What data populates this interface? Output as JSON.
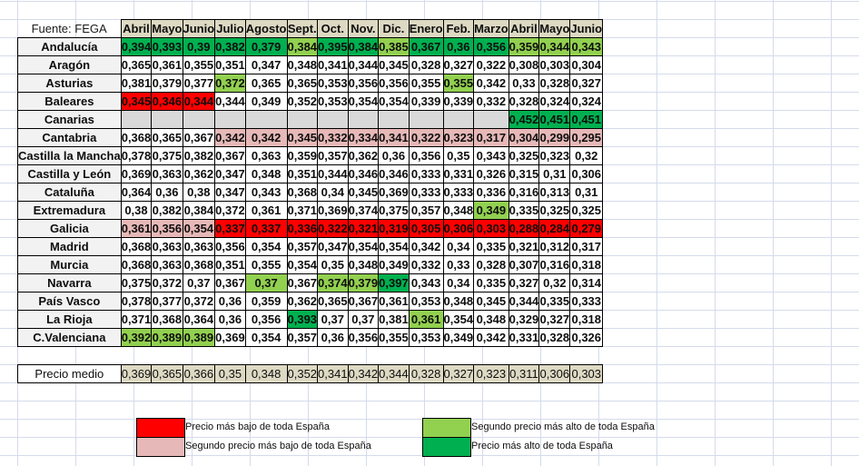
{
  "table": {
    "source_label": "Fuente: FEGA",
    "months": [
      "Abril",
      "Mayo",
      "Junio",
      "Julio",
      "Agosto",
      "Sept.",
      "Oct.",
      "Nov.",
      "Dic.",
      "Enero",
      "Feb.",
      "Marzo",
      "Abril",
      "Mayo",
      "Junio"
    ],
    "rows": [
      {
        "region": "Andalucía",
        "values": [
          "0,394",
          "0,393",
          "0,39",
          "0,382",
          "0,379",
          "0,384",
          "0,395",
          "0,384",
          "0,385",
          "0,367",
          "0,36",
          "0,356",
          "0,359",
          "0,344",
          "0,343"
        ],
        "colors": [
          "dgreen",
          "dgreen",
          "dgreen",
          "dgreen",
          "dgreen",
          "lgreen",
          "dgreen",
          "dgreen",
          "lgreen",
          "dgreen",
          "dgreen",
          "dgreen",
          "lgreen",
          "lgreen",
          "lgreen"
        ]
      },
      {
        "region": "Aragón",
        "values": [
          "0,365",
          "0,361",
          "0,355",
          "0,351",
          "0,347",
          "0,348",
          "0,341",
          "0,344",
          "0,345",
          "0,328",
          "0,327",
          "0,322",
          "0,308",
          "0,303",
          "0,304"
        ],
        "colors": [
          "none",
          "none",
          "none",
          "none",
          "none",
          "none",
          "none",
          "none",
          "none",
          "none",
          "none",
          "none",
          "none",
          "none",
          "none"
        ]
      },
      {
        "region": "Asturias",
        "values": [
          "0,381",
          "0,379",
          "0,377",
          "0,372",
          "0,365",
          "0,365",
          "0,353",
          "0,356",
          "0,356",
          "0,355",
          "0,355",
          "0,342",
          "0,33",
          "0,328",
          "0,327"
        ],
        "colors": [
          "none",
          "none",
          "none",
          "lgreen",
          "none",
          "none",
          "none",
          "none",
          "none",
          "none",
          "lgreen",
          "none",
          "none",
          "none",
          "none"
        ]
      },
      {
        "region": "Baleares",
        "values": [
          "0,345",
          "0,346",
          "0,344",
          "0,344",
          "0,349",
          "0,352",
          "0,353",
          "0,354",
          "0,354",
          "0,339",
          "0,339",
          "0,332",
          "0,328",
          "0,324",
          "0,324"
        ],
        "colors": [
          "red",
          "red",
          "red",
          "none",
          "none",
          "none",
          "none",
          "none",
          "none",
          "none",
          "none",
          "none",
          "none",
          "none",
          "none"
        ]
      },
      {
        "region": "Canarias",
        "values": [
          "",
          "",
          "",
          "",
          "",
          "",
          "",
          "",
          "",
          "",
          "",
          "",
          "0,452",
          "0,451",
          "0,451"
        ],
        "colors": [
          "gray",
          "gray",
          "gray",
          "gray",
          "gray",
          "gray",
          "gray",
          "gray",
          "gray",
          "gray",
          "gray",
          "gray",
          "dgreen",
          "dgreen",
          "dgreen"
        ]
      },
      {
        "region": "Cantabria",
        "values": [
          "0,368",
          "0,365",
          "0,367",
          "0,342",
          "0,342",
          "0,345",
          "0,332",
          "0,334",
          "0,341",
          "0,322",
          "0,323",
          "0,317",
          "0,304",
          "0,299",
          "0,295"
        ],
        "colors": [
          "none",
          "none",
          "none",
          "pink",
          "pink",
          "pink",
          "pink",
          "pink",
          "pink",
          "pink",
          "pink",
          "pink",
          "pink",
          "pink",
          "pink"
        ]
      },
      {
        "region": "Castilla la Mancha",
        "values": [
          "0,378",
          "0,375",
          "0,382",
          "0,367",
          "0,363",
          "0,359",
          "0,357",
          "0,362",
          "0,36",
          "0,356",
          "0,35",
          "0,343",
          "0,325",
          "0,323",
          "0,32"
        ],
        "colors": [
          "none",
          "none",
          "none",
          "none",
          "none",
          "none",
          "none",
          "none",
          "none",
          "none",
          "none",
          "none",
          "none",
          "none",
          "none"
        ]
      },
      {
        "region": "Castilla y León",
        "values": [
          "0,369",
          "0,363",
          "0,362",
          "0,347",
          "0,348",
          "0,351",
          "0,344",
          "0,346",
          "0,346",
          "0,333",
          "0,331",
          "0,326",
          "0,315",
          "0,31",
          "0,306"
        ],
        "colors": [
          "none",
          "none",
          "none",
          "none",
          "none",
          "none",
          "none",
          "none",
          "none",
          "none",
          "none",
          "none",
          "none",
          "none",
          "none"
        ]
      },
      {
        "region": "Cataluña",
        "values": [
          "0,364",
          "0,36",
          "0,38",
          "0,347",
          "0,343",
          "0,368",
          "0,34",
          "0,345",
          "0,369",
          "0,333",
          "0,333",
          "0,336",
          "0,316",
          "0,313",
          "0,31"
        ],
        "colors": [
          "none",
          "none",
          "none",
          "none",
          "none",
          "none",
          "none",
          "none",
          "none",
          "none",
          "none",
          "none",
          "none",
          "none",
          "none"
        ]
      },
      {
        "region": "Extremadura",
        "values": [
          "0,38",
          "0,382",
          "0,384",
          "0,372",
          "0,361",
          "0,371",
          "0,369",
          "0,374",
          "0,375",
          "0,357",
          "0,348",
          "0,349",
          "0,335",
          "0,325",
          "0,325"
        ],
        "colors": [
          "none",
          "none",
          "none",
          "none",
          "none",
          "none",
          "none",
          "none",
          "none",
          "none",
          "none",
          "lgreen",
          "none",
          "none",
          "none"
        ]
      },
      {
        "region": "Galicia",
        "values": [
          "0,361",
          "0,356",
          "0,354",
          "0,337",
          "0,337",
          "0,336",
          "0,322",
          "0,321",
          "0,319",
          "0,305",
          "0,306",
          "0,303",
          "0,288",
          "0,284",
          "0,279"
        ],
        "colors": [
          "pink",
          "pink",
          "pink",
          "red",
          "red",
          "red",
          "red",
          "red",
          "red",
          "red",
          "red",
          "red",
          "red",
          "red",
          "red"
        ]
      },
      {
        "region": "Madrid",
        "values": [
          "0,368",
          "0,363",
          "0,363",
          "0,356",
          "0,354",
          "0,357",
          "0,347",
          "0,354",
          "0,354",
          "0,342",
          "0,34",
          "0,335",
          "0,321",
          "0,312",
          "0,317"
        ],
        "colors": [
          "none",
          "none",
          "none",
          "none",
          "none",
          "none",
          "none",
          "none",
          "none",
          "none",
          "none",
          "none",
          "none",
          "none",
          "none"
        ]
      },
      {
        "region": "Murcia",
        "values": [
          "0,368",
          "0,363",
          "0,368",
          "0,351",
          "0,355",
          "0,354",
          "0,35",
          "0,348",
          "0,349",
          "0,332",
          "0,33",
          "0,328",
          "0,307",
          "0,316",
          "0,318"
        ],
        "colors": [
          "none",
          "none",
          "none",
          "none",
          "none",
          "none",
          "none",
          "none",
          "none",
          "none",
          "none",
          "none",
          "none",
          "none",
          "none"
        ]
      },
      {
        "region": "Navarra",
        "values": [
          "0,375",
          "0,372",
          "0,37",
          "0,367",
          "0,37",
          "0,367",
          "0,374",
          "0,379",
          "0,397",
          "0,343",
          "0,34",
          "0,335",
          "0,327",
          "0,32",
          "0,314"
        ],
        "colors": [
          "none",
          "none",
          "none",
          "none",
          "lgreen",
          "none",
          "lgreen",
          "lgreen",
          "dgreen",
          "none",
          "none",
          "none",
          "none",
          "none",
          "none"
        ]
      },
      {
        "region": "País Vasco",
        "values": [
          "0,378",
          "0,377",
          "0,372",
          "0,36",
          "0,359",
          "0,362",
          "0,365",
          "0,367",
          "0,361",
          "0,353",
          "0,348",
          "0,345",
          "0,344",
          "0,335",
          "0,333"
        ],
        "colors": [
          "none",
          "none",
          "none",
          "none",
          "none",
          "none",
          "none",
          "none",
          "none",
          "none",
          "none",
          "none",
          "none",
          "none",
          "none"
        ]
      },
      {
        "region": "La Rioja",
        "values": [
          "0,371",
          "0,368",
          "0,364",
          "0,36",
          "0,356",
          "0,393",
          "0,37",
          "0,37",
          "0,381",
          "0,361",
          "0,354",
          "0,348",
          "0,329",
          "0,327",
          "0,318"
        ],
        "colors": [
          "none",
          "none",
          "none",
          "none",
          "none",
          "dgreen",
          "none",
          "none",
          "none",
          "lgreen",
          "none",
          "none",
          "none",
          "none",
          "none"
        ]
      },
      {
        "region": "C.Valenciana",
        "values": [
          "0,392",
          "0,389",
          "0,389",
          "0,369",
          "0,354",
          "0,357",
          "0,36",
          "0,356",
          "0,355",
          "0,353",
          "0,349",
          "0,342",
          "0,331",
          "0,328",
          "0,326"
        ],
        "colors": [
          "lgreen",
          "lgreen",
          "lgreen",
          "none",
          "none",
          "none",
          "none",
          "none",
          "none",
          "none",
          "none",
          "none",
          "none",
          "none",
          "none"
        ]
      }
    ],
    "average": {
      "label": "Precio medio",
      "values": [
        "0,369",
        "0,365",
        "0,366",
        "0,35",
        "0,348",
        "0,352",
        "0,341",
        "0,342",
        "0,344",
        "0,328",
        "0,327",
        "0,323",
        "0,311",
        "0,306",
        "0,303"
      ]
    }
  },
  "colors": {
    "red": "#ff0000",
    "pink": "#e6b9b8",
    "lgreen": "#92d050",
    "dgreen": "#00b050",
    "gray": "#d9d9d9",
    "header": "#ddd9c3"
  },
  "legend": [
    {
      "color_key": "red",
      "label": "Precio más bajo de toda España"
    },
    {
      "color_key": "pink",
      "label": "Segundo precio más bajo de toda España"
    },
    {
      "color_key": "lgreen",
      "label": "Segundo precio más alto de toda España"
    },
    {
      "color_key": "dgreen",
      "label": "Precio más alto de toda España"
    }
  ]
}
